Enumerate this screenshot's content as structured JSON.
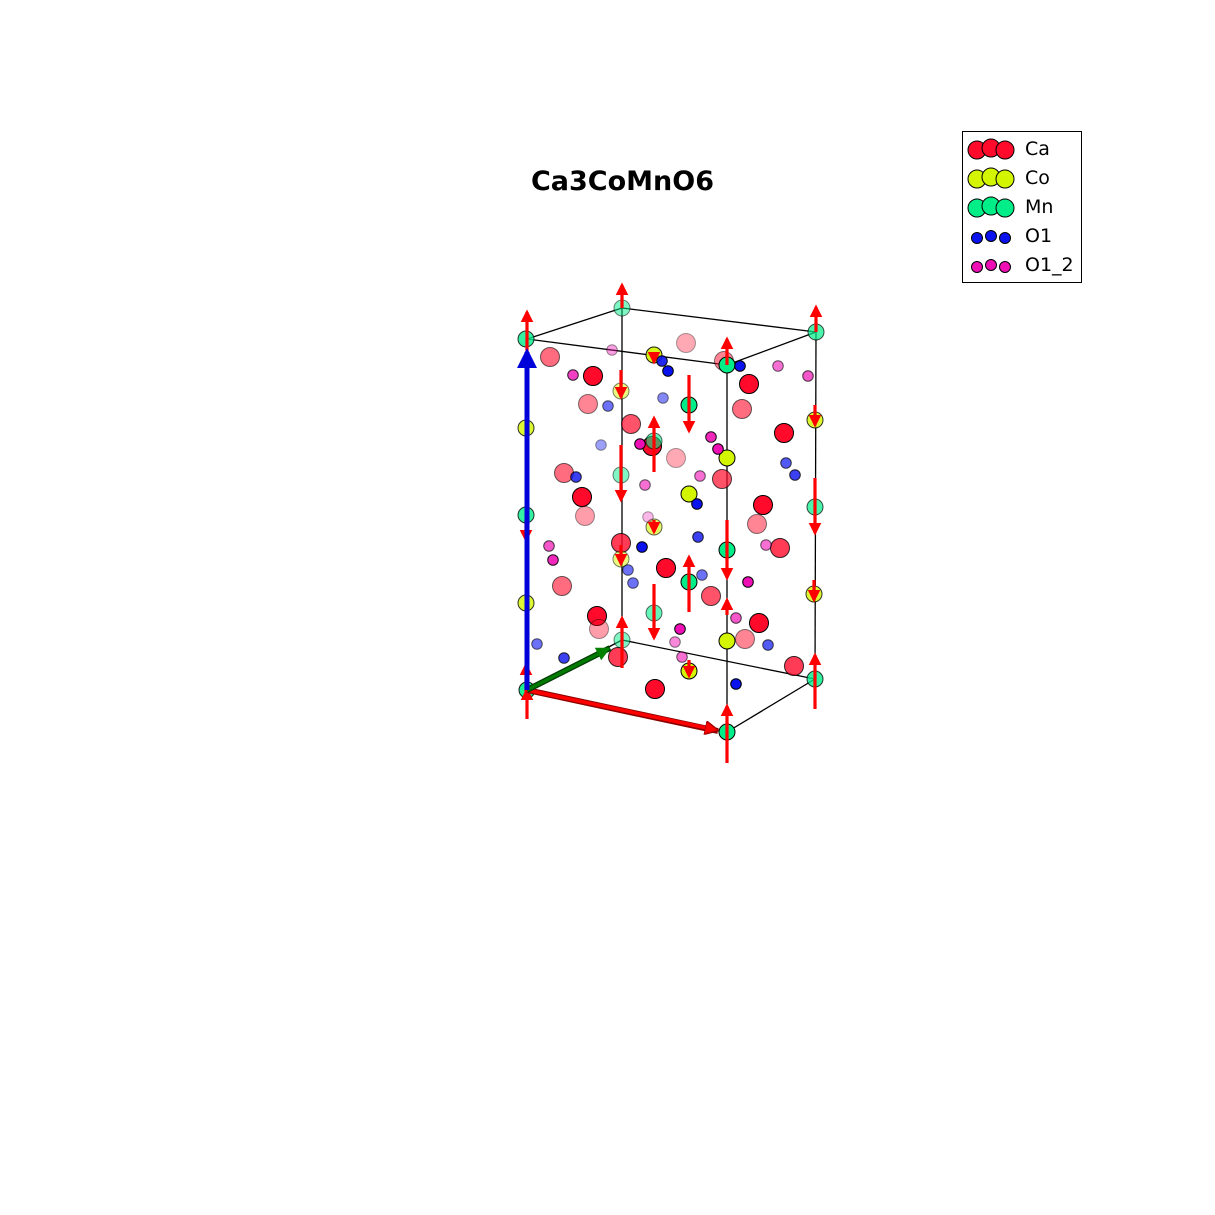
{
  "title": "Ca3CoMnO6",
  "legend": [
    {
      "label": "Ca",
      "color": "#ff0a2a",
      "size": "large"
    },
    {
      "label": "Co",
      "color": "#d4f500",
      "size": "large"
    },
    {
      "label": "Mn",
      "color": "#00ee88",
      "size": "large"
    },
    {
      "label": "O1",
      "color": "#0a12ee",
      "size": "small"
    },
    {
      "label": "O1_2",
      "color": "#ee10b4",
      "size": "small"
    }
  ],
  "axis_colors": {
    "a": "#ff0000",
    "b": "#007a00",
    "c": "#0000d8"
  },
  "spin_color": "#ff0000"
}
